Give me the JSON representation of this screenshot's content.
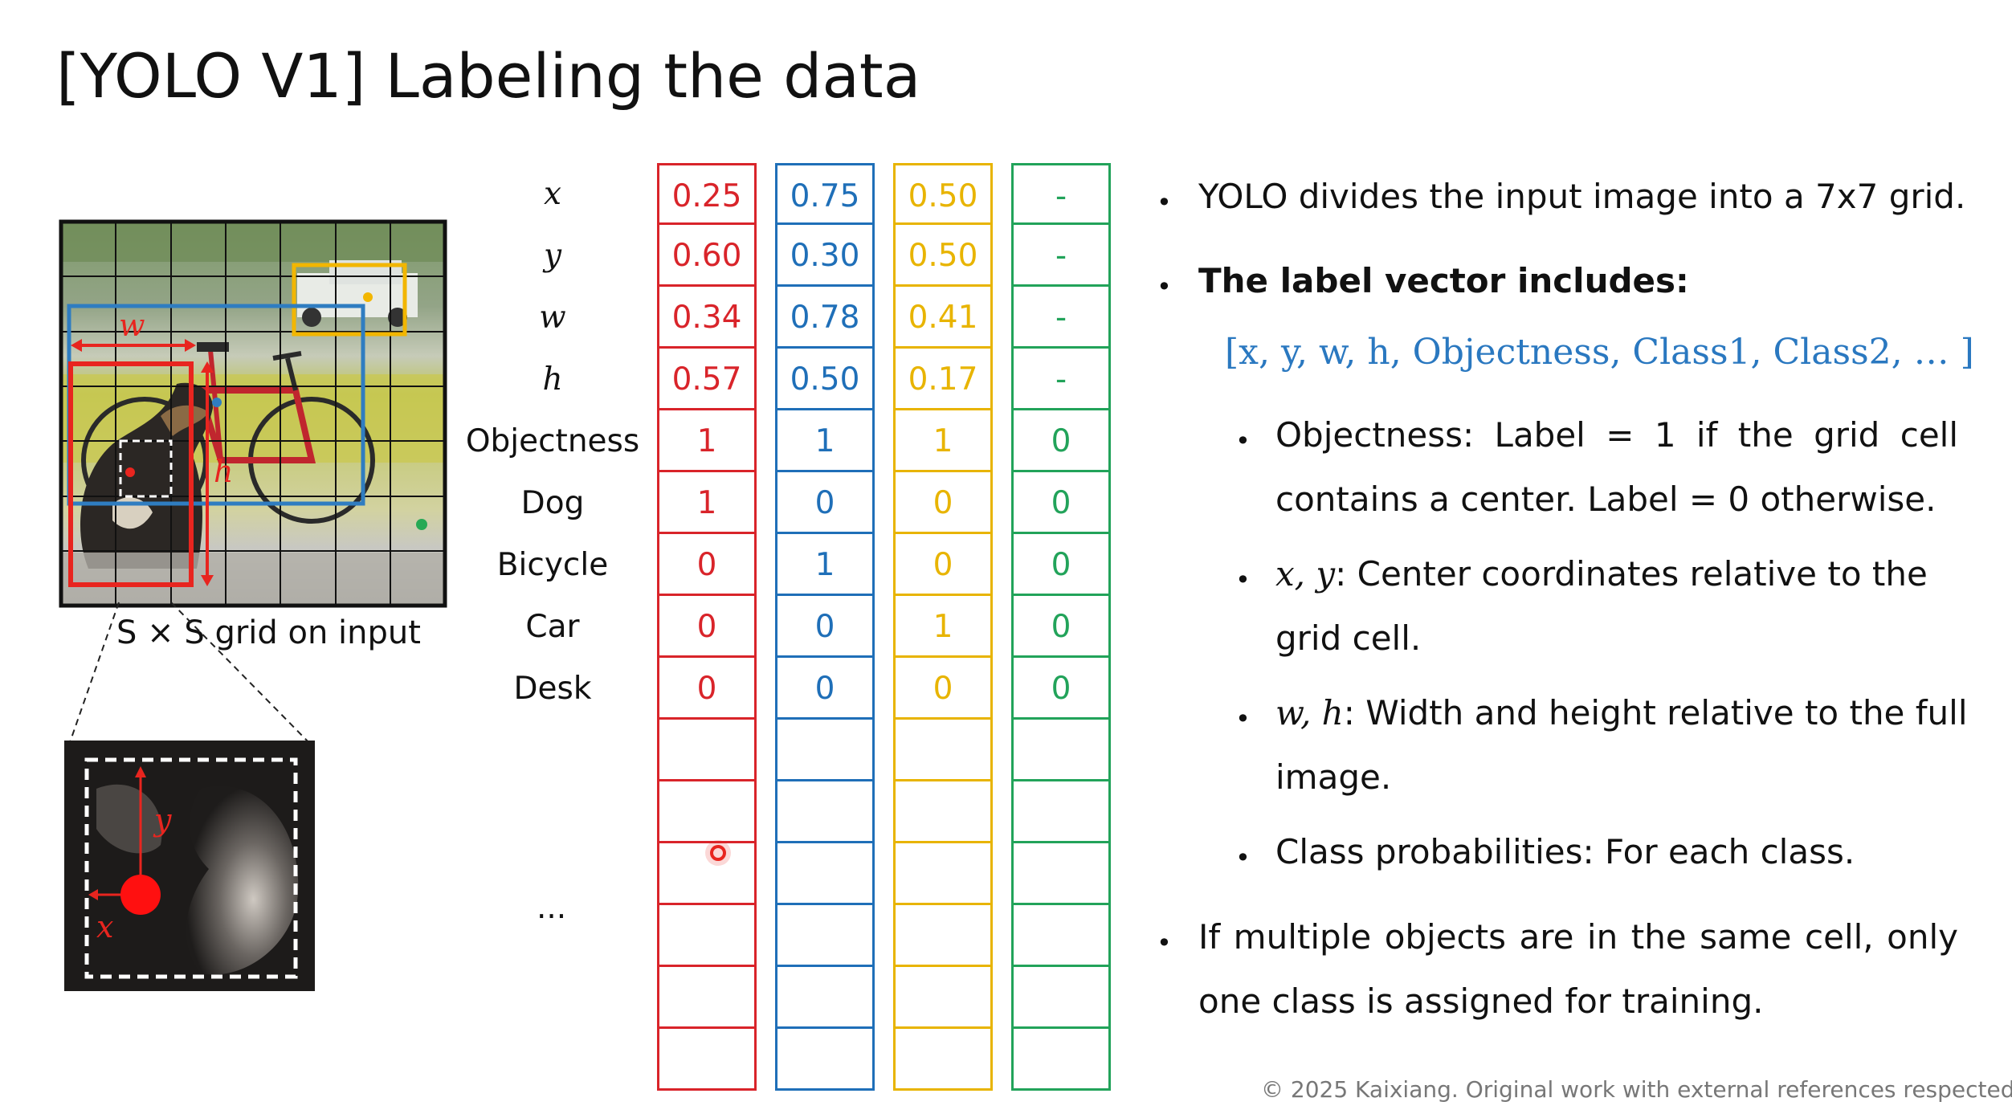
{
  "title": "[YOLO V1] Labeling the data",
  "figure": {
    "grid_caption": "S × S grid on input",
    "box_labels": {
      "w": "w",
      "h": "h",
      "x": "x",
      "y": "y"
    },
    "colors": {
      "dog": "#e8251f",
      "bicycle": "#2f7dc1",
      "car": "#f2b600",
      "empty": "#27a955"
    }
  },
  "table": {
    "row_labels": [
      "x",
      "y",
      "w",
      "h",
      "Objectness",
      "Dog",
      "Bicycle",
      "Car",
      "Desk"
    ],
    "ellipsis": "...",
    "columns": [
      {
        "color": "#d9242a",
        "values": [
          "0.25",
          "0.60",
          "0.34",
          "0.57",
          "1",
          "1",
          "0",
          "0",
          "0"
        ]
      },
      {
        "color": "#1f6fb8",
        "values": [
          "0.75",
          "0.30",
          "0.78",
          "0.50",
          "1",
          "0",
          "1",
          "0",
          "0"
        ]
      },
      {
        "color": "#e8b400",
        "values": [
          "0.50",
          "0.50",
          "0.41",
          "0.17",
          "1",
          "0",
          "0",
          "1",
          "0"
        ]
      },
      {
        "color": "#22a35a",
        "values": [
          "-",
          "-",
          "-",
          "-",
          "0",
          "0",
          "0",
          "0",
          "0"
        ]
      }
    ]
  },
  "bullets": {
    "b1": "YOLO divides the input image into a 7x7 grid.",
    "b2": "The label vector includes:",
    "vector": "[x, y, w, h, Objectness, Class1, Class2, … ]",
    "sub1_line1": "Objectness: Label = 1 if the grid cell",
    "sub1_line2": "contains a center. Label = 0 otherwise.",
    "sub2_math": "x, y",
    "sub2_line1": ": Center coordinates relative to the",
    "sub2_line2": "grid cell.",
    "sub3_math": "w, h",
    "sub3_line1": ": Width and height relative to the full",
    "sub3_line2": "image.",
    "sub4": "Class probabilities: For each class.",
    "b3_line1": "If multiple objects are in the same cell, only",
    "b3_line2": "one class is assigned for training."
  },
  "footer": "© 2025 Kaixiang. Original work with external references respected."
}
